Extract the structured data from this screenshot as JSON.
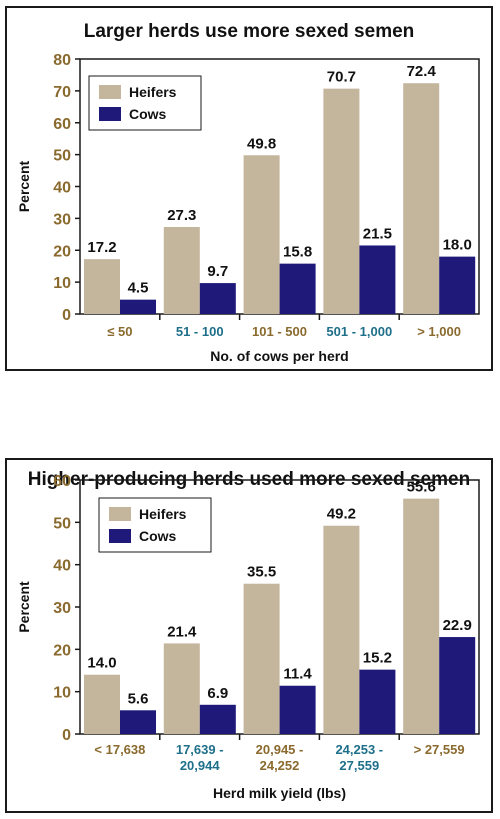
{
  "colors": {
    "heifers": "#c4b59d",
    "cows": "#1f1a7a",
    "brown_label": "#8a6a2e",
    "teal_label": "#1e6f8a"
  },
  "chart_data": [
    {
      "type": "bar",
      "title": "Larger herds use more sexed semen",
      "xlabel": "No. of cows per herd",
      "ylabel": "Percent",
      "ylim": [
        0,
        80
      ],
      "yticks": [
        0,
        10,
        20,
        30,
        40,
        50,
        60,
        70,
        80
      ],
      "categories": [
        "≤ 50",
        "51 - 100",
        "101 - 500",
        "501 - 1,000",
        "> 1,000"
      ],
      "category_colors": [
        "brown_label",
        "teal_label",
        "brown_label",
        "teal_label",
        "brown_label"
      ],
      "series": [
        {
          "name": "Heifers",
          "color": "heifers",
          "values": [
            17.2,
            27.3,
            49.8,
            70.7,
            72.4
          ],
          "labels": [
            "17.2",
            "27.3",
            "49.8",
            "70.7",
            "72.4"
          ]
        },
        {
          "name": "Cows",
          "color": "cows",
          "values": [
            4.5,
            9.7,
            15.8,
            21.5,
            18.0
          ],
          "labels": [
            "4.5",
            "9.7",
            "15.8",
            "21.5",
            "18.0"
          ]
        }
      ],
      "legend": "top-left",
      "grid": false
    },
    {
      "type": "bar",
      "title": "Higher-producing herds used more sexed semen",
      "xlabel": "Herd milk yield (lbs)",
      "ylabel": "Percent",
      "ylim": [
        0,
        60
      ],
      "yticks": [
        0,
        10,
        20,
        30,
        40,
        50,
        60
      ],
      "categories": [
        [
          "< 17,638"
        ],
        [
          "17,639 -",
          "20,944"
        ],
        [
          "20,945 -",
          "24,252"
        ],
        [
          "24,253 -",
          "27,559"
        ],
        [
          "> 27,559"
        ]
      ],
      "category_colors": [
        "brown_label",
        "teal_label",
        "brown_label",
        "teal_label",
        "brown_label"
      ],
      "series": [
        {
          "name": "Heifers",
          "color": "heifers",
          "values": [
            14.0,
            21.4,
            35.5,
            49.2,
            55.6
          ],
          "labels": [
            "14.0",
            "21.4",
            "35.5",
            "49.2",
            "55.6"
          ]
        },
        {
          "name": "Cows",
          "color": "cows",
          "values": [
            5.6,
            6.9,
            11.4,
            15.2,
            22.9
          ],
          "labels": [
            "5.6",
            "6.9",
            "11.4",
            "15.2",
            "22.9"
          ]
        }
      ],
      "legend": "top-left",
      "grid": false
    }
  ]
}
